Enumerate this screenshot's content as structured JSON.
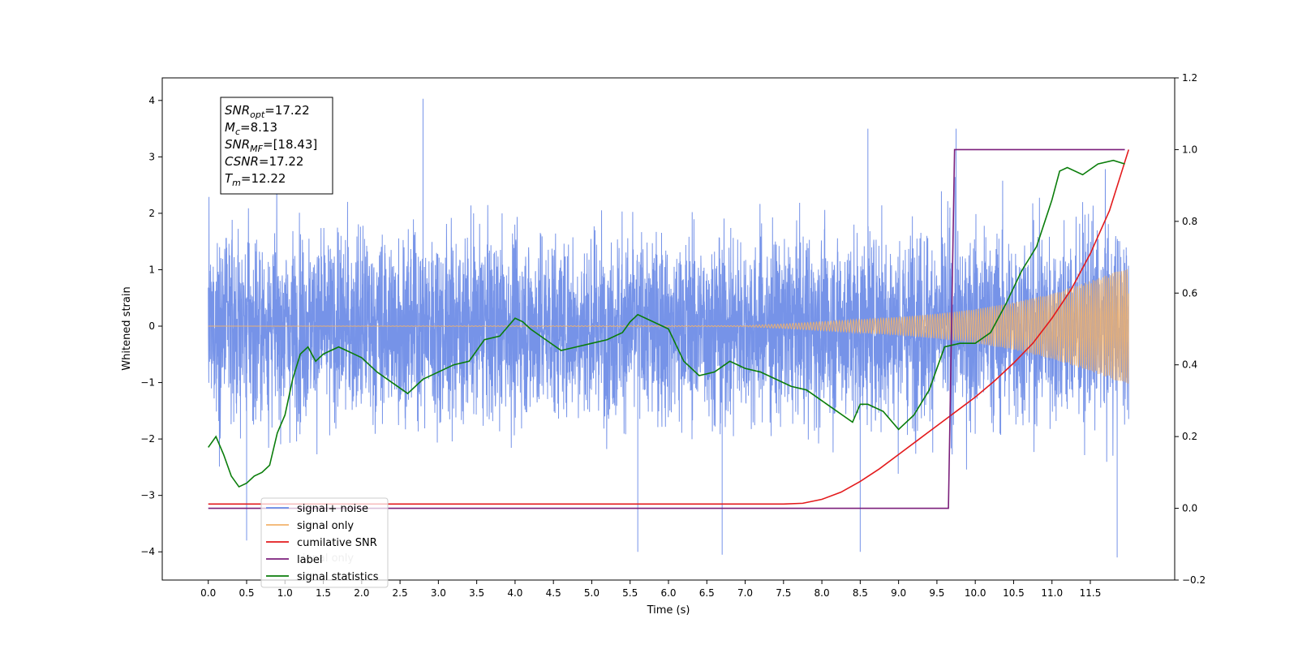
{
  "chart_data": {
    "type": "line",
    "xlabel": "Time (s)",
    "ylabel": "Whitened strain",
    "ylabel_right": "",
    "xlim": [
      -0.6,
      12.6
    ],
    "ylim": [
      -4.5,
      4.4
    ],
    "ylim_right": [
      -0.2,
      1.2
    ],
    "x_ticks": [
      "0.0",
      "0.5",
      "1.0",
      "1.5",
      "2.0",
      "2.5",
      "3.0",
      "3.5",
      "4.0",
      "4.5",
      "5.0",
      "5.5",
      "6.0",
      "6.5",
      "7.0",
      "7.5",
      "8.0",
      "8.5",
      "9.0",
      "9.5",
      "10.0",
      "10.5",
      "11.0",
      "11.5"
    ],
    "y_ticks": [
      "4",
      "3",
      "2",
      "1",
      "0",
      "−1",
      "−2",
      "−3",
      "−4"
    ],
    "y_ticks_right": [
      "1.2",
      "1.0",
      "0.8",
      "0.6",
      "0.4",
      "0.2",
      "0.0",
      "−0.2"
    ],
    "grid": false,
    "legend_position": "lower-left",
    "series": [
      {
        "name": "signal+ noise",
        "axis": "left",
        "color": "#6a8ae6",
        "style": "dense-noise",
        "x_range": [
          0.0,
          12.0
        ],
        "envelope": [
          [
            0.0,
            2.3
          ],
          [
            7.5,
            2.3
          ],
          [
            9.5,
            2.4
          ],
          [
            12.0,
            2.5
          ]
        ],
        "peaks": [
          [
            0.5,
            -3.8
          ],
          [
            2.8,
            4.03
          ],
          [
            5.6,
            -4.0
          ],
          [
            6.7,
            -4.05
          ],
          [
            8.5,
            -4.0
          ],
          [
            9.75,
            3.5
          ],
          [
            11.85,
            -4.1
          ],
          [
            8.6,
            3.5
          ]
        ]
      },
      {
        "name": "signal only",
        "axis": "left",
        "color": "#f2b36b",
        "style": "chirp",
        "x_range": [
          0.0,
          12.0
        ],
        "envelope": [
          [
            0.0,
            0.0
          ],
          [
            7.0,
            0.01
          ],
          [
            7.5,
            0.04
          ],
          [
            8.0,
            0.08
          ],
          [
            8.5,
            0.12
          ],
          [
            9.0,
            0.16
          ],
          [
            9.5,
            0.22
          ],
          [
            10.0,
            0.3
          ],
          [
            10.5,
            0.42
          ],
          [
            11.0,
            0.58
          ],
          [
            11.5,
            0.8
          ],
          [
            12.0,
            1.05
          ]
        ]
      },
      {
        "name": "cumilative SNR",
        "axis": "right",
        "color": "#e31a1c",
        "x": [
          0.0,
          7.5,
          7.75,
          8.0,
          8.25,
          8.5,
          8.75,
          9.0,
          9.25,
          9.5,
          9.75,
          10.0,
          10.25,
          10.5,
          10.75,
          11.0,
          11.25,
          11.5,
          11.75,
          12.0
        ],
        "y": [
          0.012,
          0.012,
          0.014,
          0.025,
          0.045,
          0.075,
          0.11,
          0.15,
          0.19,
          0.23,
          0.27,
          0.31,
          0.355,
          0.405,
          0.46,
          0.53,
          0.61,
          0.71,
          0.83,
          1.0
        ]
      },
      {
        "name": "label",
        "axis": "right",
        "color": "#7b1f7b",
        "x": [
          0.0,
          9.65,
          9.73,
          11.95
        ],
        "y": [
          0.0,
          0.0,
          1.0,
          1.0
        ]
      },
      {
        "name": "signal statistics",
        "axis": "right",
        "color": "#0a7d0a",
        "x": [
          0.0,
          0.1,
          0.2,
          0.3,
          0.4,
          0.5,
          0.6,
          0.7,
          0.8,
          0.9,
          1.0,
          1.1,
          1.2,
          1.3,
          1.4,
          1.5,
          1.6,
          1.7,
          1.8,
          1.9,
          2.0,
          2.2,
          2.4,
          2.6,
          2.8,
          3.0,
          3.2,
          3.4,
          3.5,
          3.6,
          3.8,
          4.0,
          4.1,
          4.2,
          4.4,
          4.6,
          4.8,
          5.0,
          5.2,
          5.4,
          5.5,
          5.6,
          5.8,
          6.0,
          6.2,
          6.4,
          6.6,
          6.8,
          7.0,
          7.2,
          7.4,
          7.6,
          7.8,
          8.0,
          8.2,
          8.4,
          8.5,
          8.6,
          8.8,
          9.0,
          9.2,
          9.4,
          9.6,
          9.8,
          10.0,
          10.2,
          10.4,
          10.6,
          10.8,
          11.0,
          11.1,
          11.2,
          11.4,
          11.6,
          11.8,
          11.95
        ],
        "y": [
          0.17,
          0.2,
          0.15,
          0.09,
          0.06,
          0.07,
          0.09,
          0.1,
          0.12,
          0.21,
          0.26,
          0.36,
          0.43,
          0.45,
          0.41,
          0.43,
          0.44,
          0.45,
          0.44,
          0.43,
          0.42,
          0.38,
          0.35,
          0.32,
          0.36,
          0.38,
          0.4,
          0.41,
          0.44,
          0.47,
          0.48,
          0.53,
          0.52,
          0.5,
          0.47,
          0.44,
          0.45,
          0.46,
          0.47,
          0.49,
          0.52,
          0.54,
          0.52,
          0.5,
          0.41,
          0.37,
          0.38,
          0.41,
          0.39,
          0.38,
          0.36,
          0.34,
          0.33,
          0.3,
          0.27,
          0.24,
          0.29,
          0.29,
          0.27,
          0.22,
          0.26,
          0.33,
          0.45,
          0.46,
          0.46,
          0.49,
          0.57,
          0.66,
          0.73,
          0.86,
          0.94,
          0.95,
          0.93,
          0.96,
          0.97,
          0.96
        ]
      }
    ]
  },
  "stats_box": [
    {
      "base": "SNR",
      "sub": "opt",
      "value": "=17.22"
    },
    {
      "base": "M",
      "sub": "c",
      "value": "=8.13"
    },
    {
      "base": "SNR",
      "sub": "MF",
      "value": "=[18.43]"
    },
    {
      "base": "CSNR",
      "sub": "",
      "value": "=17.22"
    },
    {
      "base": "T",
      "sub": "m",
      "value": "=12.22"
    }
  ],
  "legend_ghost_text": "signal only",
  "legend": [
    {
      "label": "signal+ noise",
      "color": "#6a8ae6"
    },
    {
      "label": "signal only",
      "color": "#f2b36b"
    },
    {
      "label": "cumilative SNR",
      "color": "#e31a1c"
    },
    {
      "label": "label",
      "color": "#7b1f7b"
    },
    {
      "label": "signal statistics",
      "color": "#0a7d0a"
    }
  ]
}
